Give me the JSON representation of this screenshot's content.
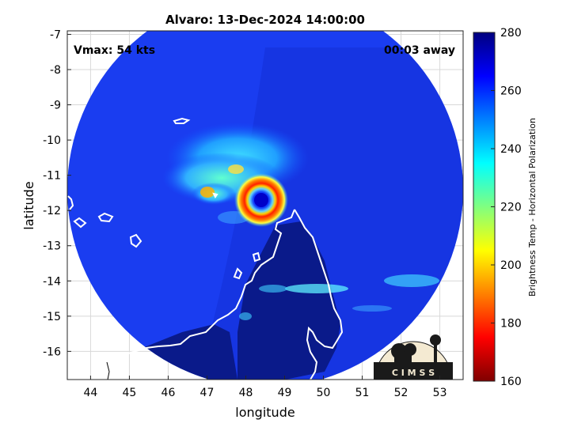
{
  "title": "Alvaro: 13-Dec-2024 14:00:00",
  "vmax_label": "Vmax: 54 kts",
  "time_away": "00:03 away",
  "xlabel": "longitude",
  "ylabel": "latitude",
  "x_ticks": [
    "44",
    "45",
    "46",
    "47",
    "48",
    "49",
    "50",
    "51",
    "52",
    "53"
  ],
  "y_ticks": [
    "-7",
    "-8",
    "-9",
    "-10",
    "-11",
    "-12",
    "-13",
    "-14",
    "-15",
    "-16"
  ],
  "colorbar": {
    "label": "Brightness Temp - Horizontal Polarization",
    "ticks": [
      "280",
      "260",
      "240",
      "220",
      "200",
      "180",
      "160"
    ],
    "range": [
      160,
      280
    ],
    "colors": [
      "#7f0000",
      "#ff0000",
      "#ff8000",
      "#ffff00",
      "#80ff80",
      "#00ffff",
      "#0080ff",
      "#0000ff",
      "#00007f"
    ]
  },
  "logo_text": "C I M S S",
  "map": {
    "xlim": [
      43.4,
      53.6
    ],
    "ylim": [
      -16.8,
      -6.9
    ],
    "storm_center": [
      48.45,
      -11.7
    ]
  }
}
